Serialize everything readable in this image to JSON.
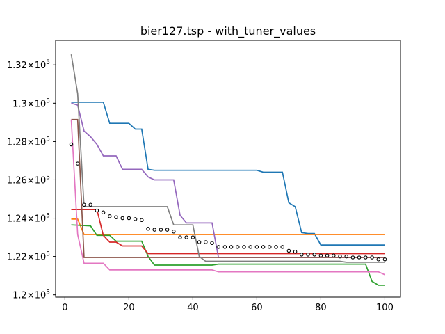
{
  "chart_data": {
    "type": "line",
    "title": "bier127.tsp - with_tuner_values",
    "xlabel": "",
    "ylabel": "",
    "xlim": [
      -2.9,
      104.9
    ],
    "ylim": [
      119880,
      133280
    ],
    "x_ticks": [
      0,
      20,
      40,
      60,
      80,
      100
    ],
    "x_tick_labels": [
      "0",
      "20",
      "40",
      "60",
      "80",
      "100"
    ],
    "y_ticks": [
      120000,
      122000,
      124000,
      126000,
      128000,
      130000,
      132000
    ],
    "y_tick_labels": [
      {
        "m": "1.2",
        "e": "5"
      },
      {
        "m": "1.22",
        "e": "5"
      },
      {
        "m": "1.24",
        "e": "5"
      },
      {
        "m": "1.26",
        "e": "5"
      },
      {
        "m": "1.28",
        "e": "5"
      },
      {
        "m": "1.3",
        "e": "5"
      },
      {
        "m": "1.32",
        "e": "5"
      }
    ],
    "grid": false,
    "series": [
      {
        "color": "#1f77b4",
        "points": [
          [
            2,
            130050
          ],
          [
            12,
            130050
          ],
          [
            14,
            128950
          ],
          [
            20,
            128950
          ],
          [
            22,
            128650
          ],
          [
            24,
            128650
          ],
          [
            26,
            126550
          ],
          [
            28,
            126500
          ],
          [
            60,
            126500
          ],
          [
            62,
            126400
          ],
          [
            68,
            126400
          ],
          [
            70,
            124800
          ],
          [
            72,
            124600
          ],
          [
            74,
            123250
          ],
          [
            76,
            123200
          ],
          [
            78,
            123200
          ],
          [
            80,
            122600
          ],
          [
            100,
            122600
          ]
        ]
      },
      {
        "color": "#ff7f0e",
        "points": [
          [
            2,
            123950
          ],
          [
            4,
            123950
          ],
          [
            6,
            123150
          ],
          [
            100,
            123150
          ]
        ]
      },
      {
        "color": "#2ca02c",
        "points": [
          [
            2,
            123650
          ],
          [
            8,
            123600
          ],
          [
            10,
            123100
          ],
          [
            14,
            123100
          ],
          [
            16,
            122800
          ],
          [
            24,
            122800
          ],
          [
            26,
            122000
          ],
          [
            28,
            121550
          ],
          [
            46,
            121550
          ],
          [
            48,
            121600
          ],
          [
            94,
            121600
          ],
          [
            96,
            120700
          ],
          [
            98,
            120500
          ],
          [
            100,
            120500
          ]
        ]
      },
      {
        "color": "#d62728",
        "points": [
          [
            2,
            124450
          ],
          [
            10,
            124450
          ],
          [
            12,
            123100
          ],
          [
            14,
            122750
          ],
          [
            16,
            122750
          ],
          [
            18,
            122550
          ],
          [
            24,
            122550
          ],
          [
            26,
            122150
          ],
          [
            100,
            122150
          ]
        ]
      },
      {
        "color": "#9467bd",
        "points": [
          [
            2,
            130000
          ],
          [
            4,
            129900
          ],
          [
            6,
            128550
          ],
          [
            8,
            128250
          ],
          [
            10,
            127850
          ],
          [
            12,
            127250
          ],
          [
            16,
            127250
          ],
          [
            18,
            126550
          ],
          [
            24,
            126550
          ],
          [
            26,
            126150
          ],
          [
            28,
            126000
          ],
          [
            34,
            126000
          ],
          [
            36,
            124150
          ],
          [
            38,
            123750
          ],
          [
            46,
            123750
          ],
          [
            48,
            121950
          ],
          [
            100,
            121950
          ]
        ]
      },
      {
        "color": "#8c564b",
        "points": [
          [
            2,
            129150
          ],
          [
            4,
            129150
          ],
          [
            6,
            121950
          ],
          [
            100,
            121950
          ]
        ]
      },
      {
        "color": "#e377c2",
        "points": [
          [
            2,
            129150
          ],
          [
            4,
            123150
          ],
          [
            6,
            121650
          ],
          [
            12,
            121650
          ],
          [
            14,
            121300
          ],
          [
            46,
            121300
          ],
          [
            48,
            121200
          ],
          [
            98,
            121200
          ],
          [
            100,
            121050
          ]
        ]
      },
      {
        "color": "#7f7f7f",
        "points": [
          [
            2,
            132550
          ],
          [
            4,
            130500
          ],
          [
            6,
            124600
          ],
          [
            32,
            124600
          ],
          [
            34,
            123650
          ],
          [
            40,
            123650
          ],
          [
            42,
            122000
          ],
          [
            44,
            121750
          ],
          [
            86,
            121750
          ],
          [
            88,
            121700
          ],
          [
            100,
            121700
          ]
        ]
      }
    ],
    "markers": {
      "style": "circle-open",
      "x": [
        2,
        4,
        6,
        8,
        10,
        12,
        14,
        16,
        18,
        20,
        22,
        24,
        26,
        28,
        30,
        32,
        34,
        36,
        38,
        40,
        42,
        44,
        46,
        48,
        50,
        52,
        54,
        56,
        58,
        60,
        62,
        64,
        66,
        68,
        70,
        72,
        74,
        76,
        78,
        80,
        82,
        84,
        86,
        88,
        90,
        92,
        94,
        96,
        98,
        100
      ],
      "y": [
        127850,
        126850,
        124700,
        124700,
        124400,
        124300,
        124100,
        124050,
        124000,
        124000,
        123950,
        123900,
        123450,
        123400,
        123400,
        123400,
        123300,
        123000,
        123000,
        123000,
        122750,
        122750,
        122700,
        122500,
        122500,
        122500,
        122500,
        122500,
        122500,
        122500,
        122500,
        122500,
        122500,
        122500,
        122300,
        122250,
        122100,
        122100,
        122100,
        122050,
        122050,
        122050,
        122000,
        122000,
        121950,
        121950,
        121950,
        121950,
        121850,
        121850
      ]
    }
  }
}
